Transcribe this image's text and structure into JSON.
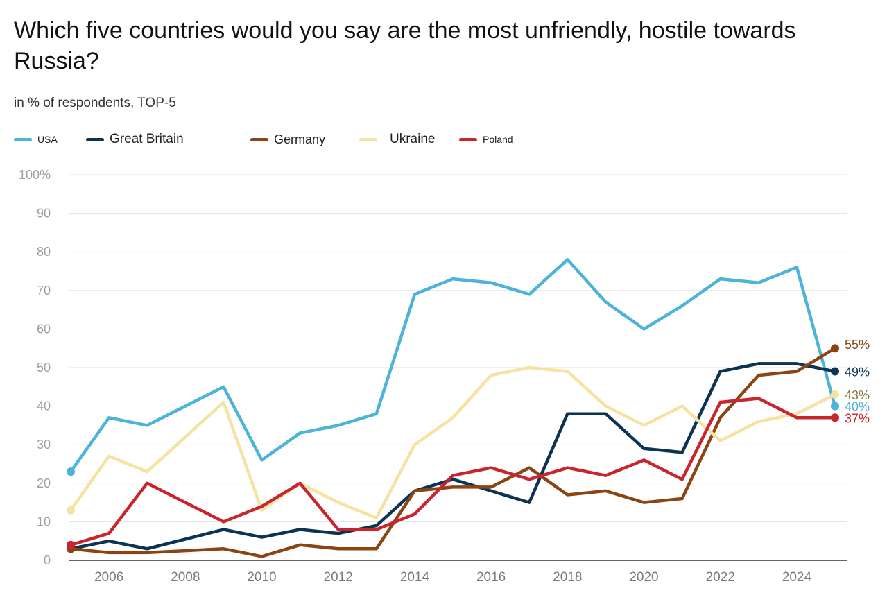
{
  "title": "Which five countries would you say are the most unfriendly, hostile towards Russia?",
  "subtitle": "in % of respondents, TOP-5",
  "chart_data": {
    "type": "line",
    "title": "Which five countries would you say are the most unfriendly, hostile towards Russia?",
    "subtitle": "in % of respondents, TOP-5",
    "x": [
      2005,
      2006,
      2007,
      2008,
      2009,
      2010,
      2011,
      2012,
      2013,
      2014,
      2015,
      2016,
      2017,
      2018,
      2019,
      2020,
      2021,
      2022,
      2023,
      2024,
      2025
    ],
    "x_ticks": [
      "2006",
      "2008",
      "2010",
      "2012",
      "2014",
      "2016",
      "2018",
      "2020",
      "2022",
      "2024"
    ],
    "y_ticks": [
      "0",
      "10",
      "20",
      "30",
      "40",
      "50",
      "60",
      "70",
      "80",
      "90",
      "100%"
    ],
    "ylim": [
      0,
      100
    ],
    "grid": true,
    "legend_position": "top-left",
    "series": [
      {
        "name": "USA",
        "color": "#4db3d9",
        "end_label": "40%",
        "values": [
          23,
          37,
          35,
          40,
          45,
          26,
          33,
          35,
          38,
          69,
          73,
          72,
          69,
          78,
          67,
          60,
          66,
          73,
          72,
          76,
          40
        ]
      },
      {
        "name": "Great Britain",
        "color": "#0b3354",
        "end_label": "49%",
        "values": [
          3,
          5,
          3,
          5.5,
          8,
          6,
          8,
          7,
          9,
          18,
          21,
          18,
          15,
          38,
          38,
          29,
          28,
          49,
          51,
          51,
          49
        ]
      },
      {
        "name": "Germany",
        "color": "#8b4513",
        "end_label": "55%",
        "values": [
          3,
          2,
          2,
          2.5,
          3,
          1,
          4,
          3,
          3,
          18,
          19,
          19,
          24,
          17,
          18,
          15,
          16,
          37,
          48,
          49,
          55
        ]
      },
      {
        "name": "Ukraine",
        "color": "#f5e3a3",
        "end_label": "43%",
        "values": [
          13,
          27,
          23,
          32,
          41,
          13,
          20,
          15,
          11,
          30,
          37,
          48,
          50,
          49,
          40,
          35,
          40,
          31,
          36,
          38,
          43
        ]
      },
      {
        "name": "Poland",
        "color": "#c8262c",
        "end_label": "37%",
        "values": [
          4,
          7,
          20,
          15,
          10,
          14,
          20,
          8,
          8,
          12,
          22,
          24,
          21,
          24,
          22,
          26,
          21,
          41,
          42,
          37,
          37
        ]
      }
    ],
    "legend_font_sizes": [
      14,
      19,
      18,
      19,
      14
    ]
  },
  "end_label_colors": [
    "#4db3d9",
    "#0b3354",
    "#8b4513",
    "#8a7a3a",
    "#c8262c"
  ]
}
